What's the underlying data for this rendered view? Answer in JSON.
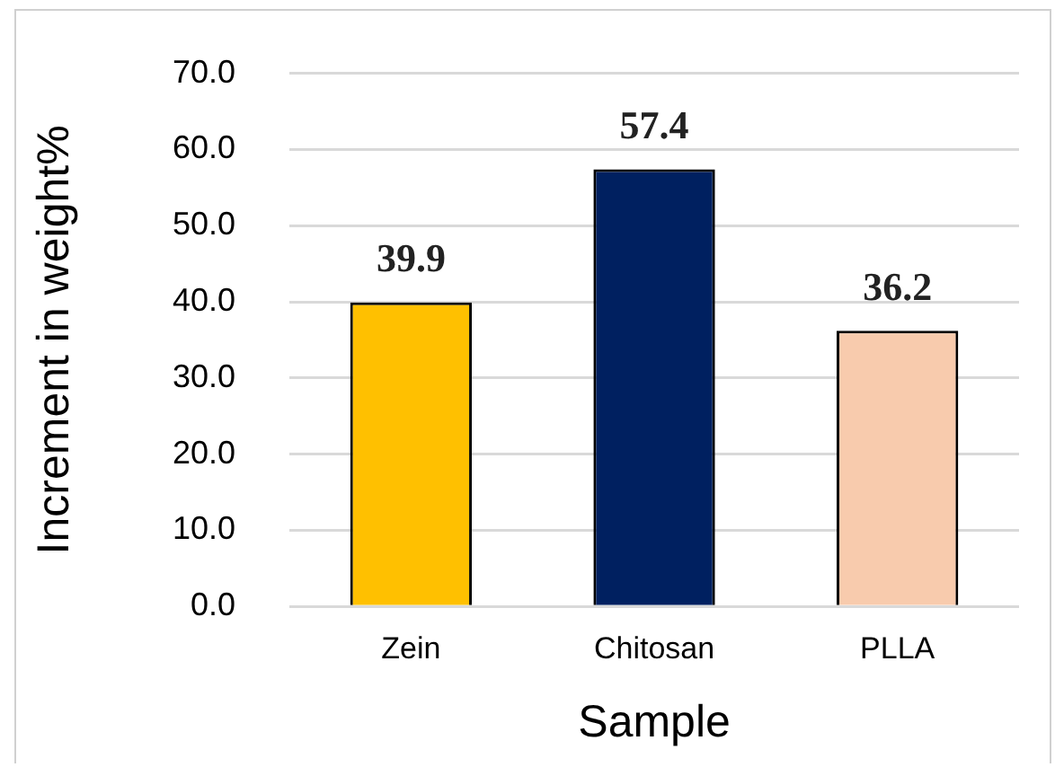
{
  "chart_data": {
    "type": "bar",
    "xlabel": "Sample",
    "ylabel": "Increment in weight%",
    "categories": [
      "Zein",
      "Chitosan",
      "PLLA"
    ],
    "values": [
      39.9,
      57.4,
      36.2
    ],
    "colors": [
      "#ffc000",
      "#002060",
      "#f8cbad"
    ],
    "ylim": [
      0,
      70
    ],
    "yticks": [
      {
        "value": 0,
        "label": "0.0"
      },
      {
        "value": 10,
        "label": "10.0"
      },
      {
        "value": 20,
        "label": "20.0"
      },
      {
        "value": 30,
        "label": "30.0"
      },
      {
        "value": 40,
        "label": "40.0"
      },
      {
        "value": 50,
        "label": "50.0"
      },
      {
        "value": 60,
        "label": "60.0"
      },
      {
        "value": 70,
        "label": "70.0"
      }
    ],
    "grid": "y",
    "data_labels": true,
    "legend": false
  }
}
